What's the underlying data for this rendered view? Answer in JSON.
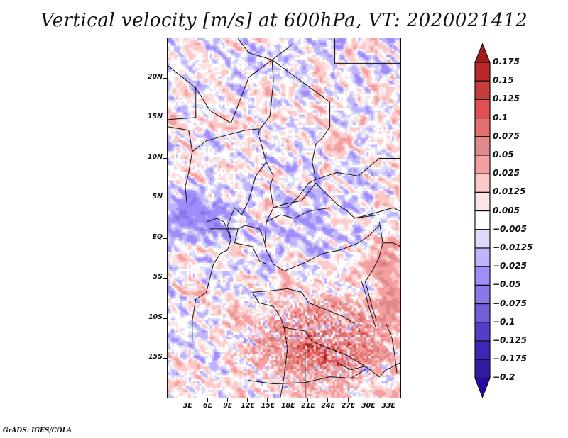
{
  "title": "Vertical velocity [m/s] at 600hPa, VT: 2020021412",
  "credit": "GrADS: IGES/COLA",
  "map": {
    "projection": "latlon",
    "lon_range": [
      0,
      35
    ],
    "lat_range": [
      -20,
      25
    ],
    "variable": "Vertical velocity",
    "units": "m/s",
    "level": "600hPa",
    "valid_time": "2020021412",
    "y_ticks": [
      {
        "label": "20N",
        "lat": 20
      },
      {
        "label": "15N",
        "lat": 15
      },
      {
        "label": "10N",
        "lat": 10
      },
      {
        "label": "5N",
        "lat": 5
      },
      {
        "label": "EQ",
        "lat": 0
      },
      {
        "label": "5S",
        "lat": -5
      },
      {
        "label": "10S",
        "lat": -10
      },
      {
        "label": "15S",
        "lat": -15
      }
    ],
    "x_ticks": [
      {
        "label": "3E",
        "lon": 3
      },
      {
        "label": "6E",
        "lon": 6
      },
      {
        "label": "9E",
        "lon": 9
      },
      {
        "label": "12E",
        "lon": 12
      },
      {
        "label": "15E",
        "lon": 15
      },
      {
        "label": "18E",
        "lon": 18
      },
      {
        "label": "21E",
        "lon": 21
      },
      {
        "label": "24E",
        "lon": 24
      },
      {
        "label": "27E",
        "lon": 27
      },
      {
        "label": "30E",
        "lon": 30
      },
      {
        "label": "33E",
        "lon": 33
      }
    ]
  },
  "chart_data": {
    "type": "heatmap",
    "title": "Vertical velocity [m/s] at 600hPa, VT: 2020021412",
    "xlabel": "",
    "ylabel": "",
    "x_range": [
      0,
      35
    ],
    "y_range": [
      -20,
      25
    ],
    "x_tick_labels": [
      "3E",
      "6E",
      "9E",
      "12E",
      "15E",
      "18E",
      "21E",
      "24E",
      "27E",
      "30E",
      "33E"
    ],
    "y_tick_labels": [
      "20N",
      "15N",
      "10N",
      "5N",
      "EQ",
      "5S",
      "10S",
      "15S"
    ],
    "legend": "right",
    "colorbar": {
      "labels": [
        "0.175",
        "0.15",
        "0.125",
        "0.1",
        "0.075",
        "0.05",
        "0.025",
        "0.0125",
        "0.005",
        "-0.005",
        "-0.0125",
        "-0.025",
        "-0.05",
        "-0.075",
        "-0.1",
        "-0.125",
        "-0.175",
        "-0.2"
      ],
      "colors": [
        "#a31c1c",
        "#b82828",
        "#c83c3c",
        "#e05050",
        "#e46e6e",
        "#e08a8a",
        "#f5a0a0",
        "#fcc8c8",
        "#fde4e4",
        "#ffffff",
        "#dcdcfa",
        "#c0b4fc",
        "#a08cfa",
        "#8878ea",
        "#7060d8",
        "#5040c8",
        "#3c28b8",
        "#2e1ea4",
        "#2a0aa0"
      ],
      "extend": "both"
    },
    "notes": "Mostly weak mixed positive/negative values over the Sahara/Sahel; stronger positive (upward, red 0.05-0.15) values over Angola, Zambia and southern DRC (roughly 8S-20S, 14E-33E); negative (blue) bands over Gulf of Guinea and central Congo Basin."
  }
}
